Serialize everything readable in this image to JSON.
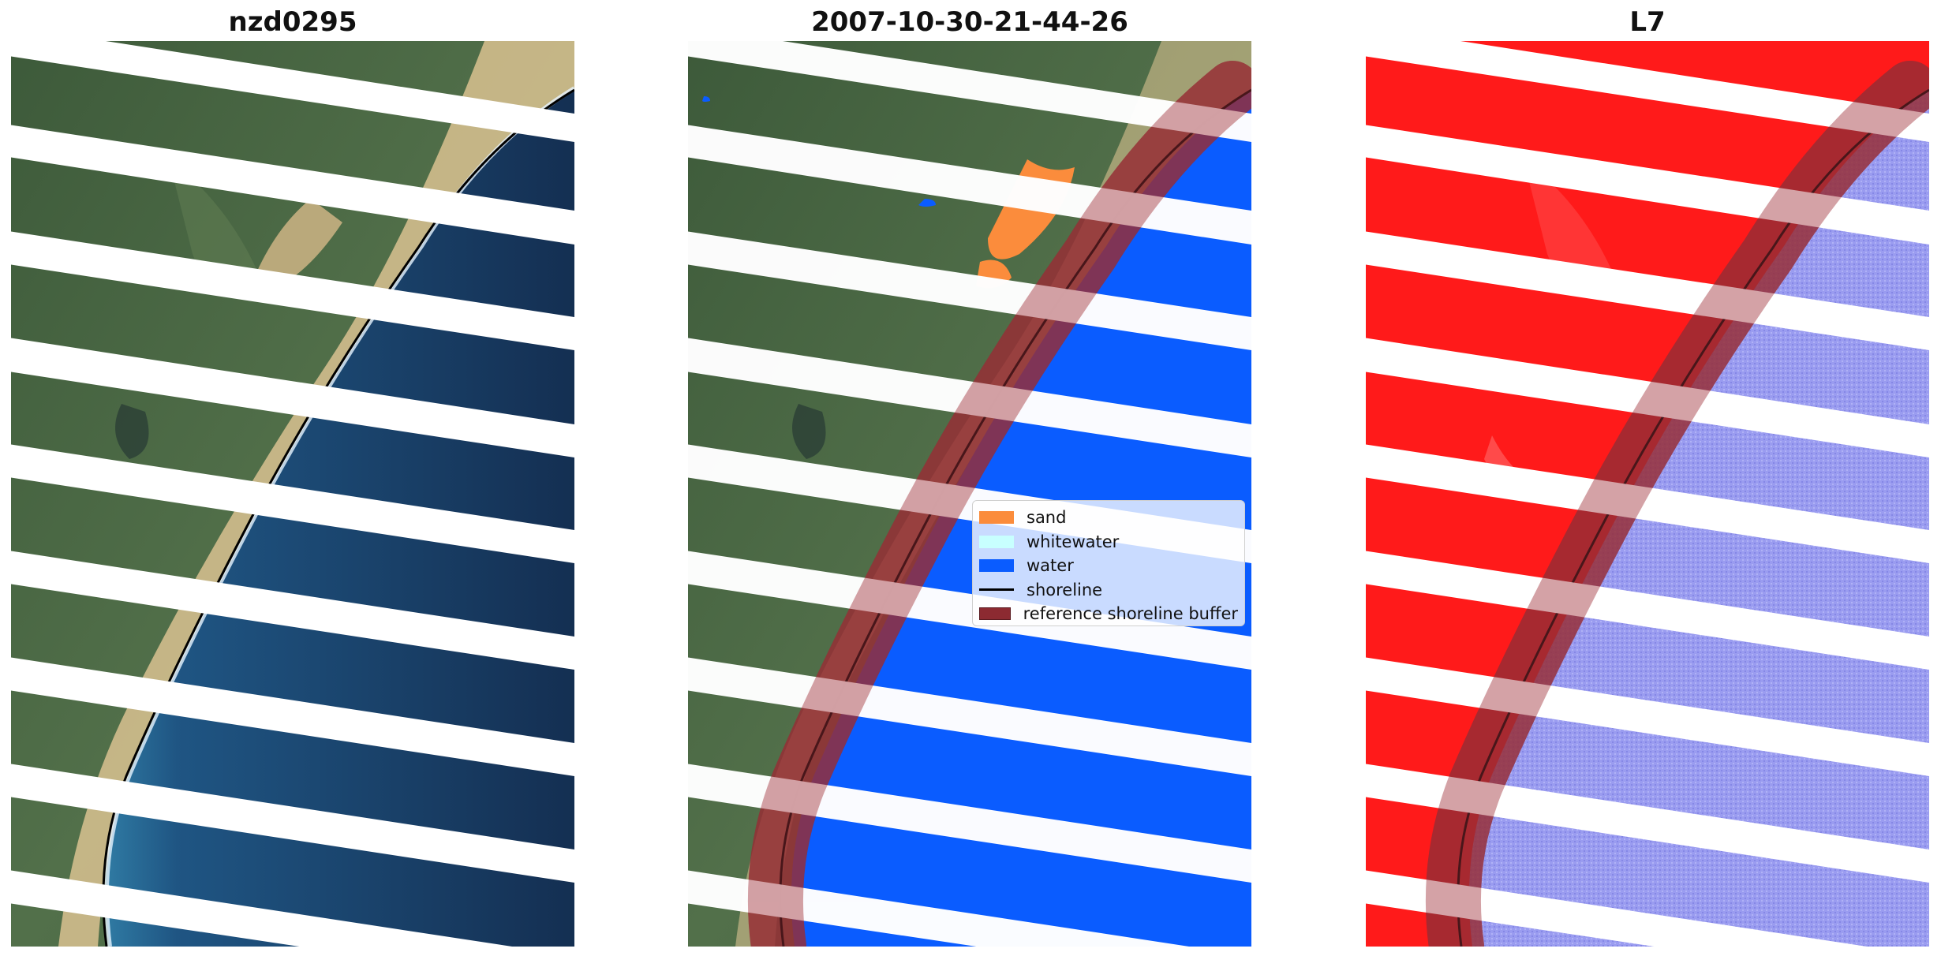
{
  "panels": [
    {
      "title": "nzd0295"
    },
    {
      "title": "2007-10-30-21-44-26"
    },
    {
      "title": "L7"
    }
  ],
  "legend": {
    "items": [
      {
        "label": "sand",
        "color": "#fb8c3c",
        "kind": "patch"
      },
      {
        "label": "whitewater",
        "color": "#c8ffff",
        "kind": "patch"
      },
      {
        "label": "water",
        "color": "#0a5cff",
        "kind": "patch"
      },
      {
        "label": "shoreline",
        "color": "#000000",
        "kind": "line"
      },
      {
        "label": "reference shoreline buffer",
        "color": "#8c2a31",
        "kind": "patch"
      }
    ]
  },
  "colors": {
    "land_dark": "#3a5638",
    "land_mid": "#4f6e46",
    "sand": "#d8bf8e",
    "sea": "#15375e",
    "sea_near": "#2d6f99",
    "surf": "#e8f6ff",
    "class_water": "#0a5cff",
    "class_sand": "#fb8c3c",
    "index_land": "#ff1a1a",
    "index_water": "#9a9cf0",
    "buffer": "#8c2a31",
    "buffer_on_water": "#5e2aa8",
    "stripe_gap": "#ffffff"
  }
}
